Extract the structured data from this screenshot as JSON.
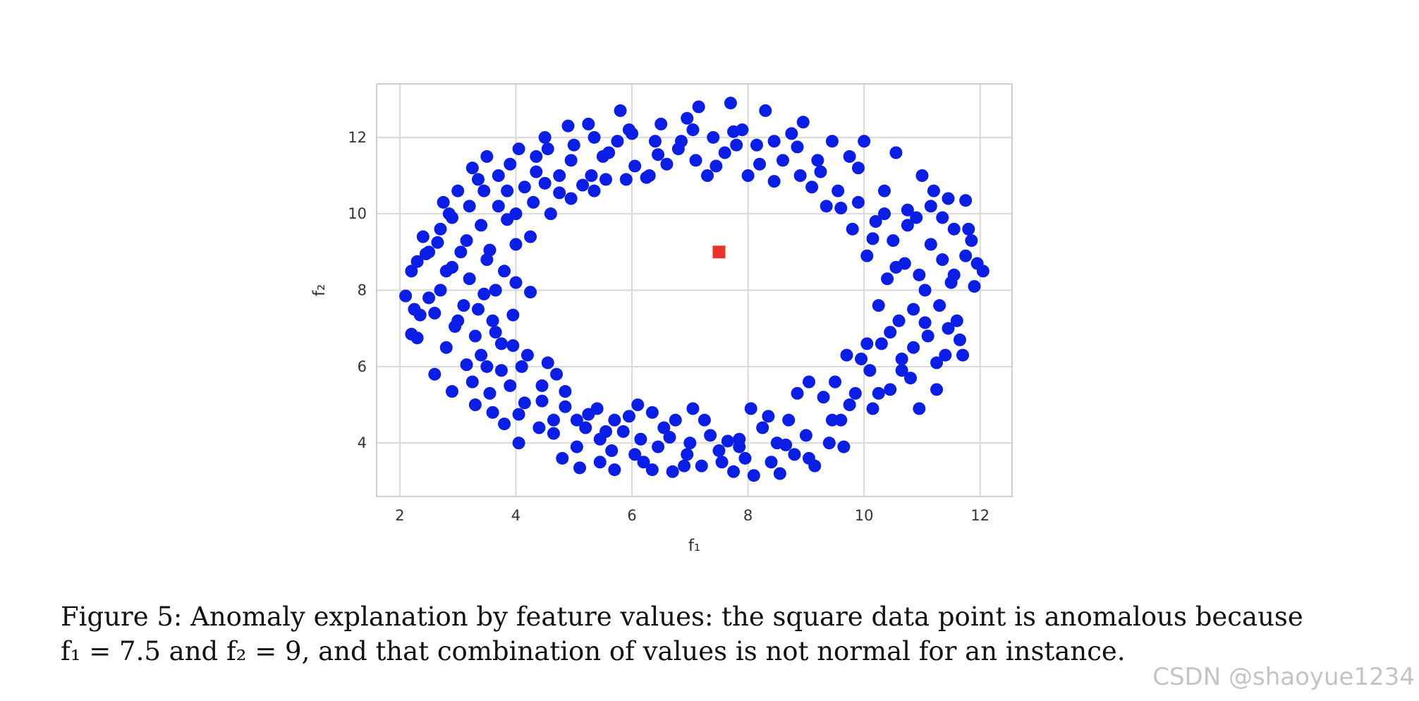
{
  "chart_data": {
    "type": "scatter",
    "title": "",
    "xlabel": "f₁",
    "ylabel": "f₂",
    "xlim": [
      1.6,
      12.55
    ],
    "ylim": [
      2.6,
      13.4
    ],
    "xticks": [
      2,
      4,
      6,
      8,
      10,
      12
    ],
    "yticks": [
      4,
      6,
      8,
      10,
      12
    ],
    "grid": true,
    "series": [
      {
        "marker": "circle",
        "color": "#0a1ee8",
        "points": [
          [
            2.1,
            7.85
          ],
          [
            2.2,
            8.5
          ],
          [
            2.3,
            8.75
          ],
          [
            2.25,
            7.5
          ],
          [
            2.35,
            7.35
          ],
          [
            2.2,
            6.85
          ],
          [
            2.3,
            6.75
          ],
          [
            2.4,
            9.4
          ],
          [
            2.5,
            9.0
          ],
          [
            2.5,
            7.8
          ],
          [
            2.6,
            7.4
          ],
          [
            2.6,
            5.8
          ],
          [
            2.7,
            8.0
          ],
          [
            2.7,
            9.6
          ],
          [
            2.75,
            10.3
          ],
          [
            2.8,
            8.5
          ],
          [
            2.8,
            6.5
          ],
          [
            2.9,
            8.6
          ],
          [
            2.9,
            9.9
          ],
          [
            2.9,
            5.35
          ],
          [
            3.0,
            7.2
          ],
          [
            3.0,
            10.6
          ],
          [
            3.05,
            9.0
          ],
          [
            3.1,
            7.6
          ],
          [
            3.15,
            9.3
          ],
          [
            3.2,
            8.3
          ],
          [
            3.2,
            10.2
          ],
          [
            3.25,
            11.2
          ],
          [
            3.3,
            6.8
          ],
          [
            3.3,
            5.0
          ],
          [
            3.35,
            7.5
          ],
          [
            3.4,
            6.3
          ],
          [
            3.4,
            9.7
          ],
          [
            3.45,
            10.6
          ],
          [
            3.5,
            11.5
          ],
          [
            3.5,
            8.8
          ],
          [
            3.5,
            6.0
          ],
          [
            3.55,
            5.3
          ],
          [
            3.6,
            7.2
          ],
          [
            3.6,
            4.8
          ],
          [
            3.65,
            8.0
          ],
          [
            3.7,
            10.2
          ],
          [
            3.7,
            11.0
          ],
          [
            3.75,
            6.6
          ],
          [
            3.8,
            4.5
          ],
          [
            3.8,
            8.5
          ],
          [
            3.85,
            10.6
          ],
          [
            3.9,
            11.3
          ],
          [
            3.9,
            5.5
          ],
          [
            3.95,
            7.35
          ],
          [
            4.0,
            8.2
          ],
          [
            4.0,
            9.2
          ],
          [
            4.0,
            10.0
          ],
          [
            4.05,
            11.7
          ],
          [
            4.05,
            4.0
          ],
          [
            4.1,
            6.0
          ],
          [
            4.15,
            5.05
          ],
          [
            4.2,
            6.3
          ],
          [
            4.25,
            9.4
          ],
          [
            4.3,
            10.3
          ],
          [
            4.35,
            11.5
          ],
          [
            4.4,
            4.4
          ],
          [
            4.45,
            5.5
          ],
          [
            4.5,
            12.0
          ],
          [
            4.5,
            10.8
          ],
          [
            4.55,
            6.1
          ],
          [
            4.6,
            10.0
          ],
          [
            4.65,
            4.6
          ],
          [
            4.7,
            5.8
          ],
          [
            4.75,
            11.0
          ],
          [
            4.8,
            3.6
          ],
          [
            4.85,
            5.35
          ],
          [
            4.9,
            12.3
          ],
          [
            4.95,
            10.4
          ],
          [
            5.0,
            11.8
          ],
          [
            5.05,
            4.6
          ],
          [
            5.1,
            3.35
          ],
          [
            5.2,
            4.4
          ],
          [
            5.25,
            12.35
          ],
          [
            5.3,
            11.0
          ],
          [
            5.35,
            10.6
          ],
          [
            5.4,
            4.9
          ],
          [
            5.45,
            3.5
          ],
          [
            5.5,
            11.5
          ],
          [
            5.55,
            4.3
          ],
          [
            5.6,
            11.6
          ],
          [
            5.7,
            4.6
          ],
          [
            5.7,
            3.3
          ],
          [
            5.8,
            12.7
          ],
          [
            5.9,
            10.9
          ],
          [
            5.95,
            4.7
          ],
          [
            6.0,
            12.1
          ],
          [
            6.05,
            11.25
          ],
          [
            6.1,
            5.0
          ],
          [
            6.15,
            4.1
          ],
          [
            6.2,
            3.5
          ],
          [
            6.3,
            11.0
          ],
          [
            6.35,
            4.8
          ],
          [
            6.4,
            11.9
          ],
          [
            6.45,
            3.9
          ],
          [
            6.5,
            12.35
          ],
          [
            6.55,
            4.4
          ],
          [
            6.6,
            11.3
          ],
          [
            6.7,
            3.25
          ],
          [
            6.75,
            4.6
          ],
          [
            6.8,
            11.7
          ],
          [
            6.9,
            3.4
          ],
          [
            6.95,
            12.5
          ],
          [
            7.0,
            4.0
          ],
          [
            7.05,
            4.9
          ],
          [
            7.1,
            11.4
          ],
          [
            7.15,
            12.8
          ],
          [
            7.2,
            3.4
          ],
          [
            7.3,
            11.0
          ],
          [
            7.35,
            4.2
          ],
          [
            7.4,
            12.0
          ],
          [
            7.5,
            3.8
          ],
          [
            7.6,
            11.6
          ],
          [
            7.65,
            4.05
          ],
          [
            7.7,
            12.9
          ],
          [
            7.75,
            3.25
          ],
          [
            7.8,
            11.8
          ],
          [
            7.85,
            4.1
          ],
          [
            7.9,
            12.2
          ],
          [
            7.95,
            3.6
          ],
          [
            8.0,
            11.0
          ],
          [
            8.05,
            4.9
          ],
          [
            8.1,
            3.15
          ],
          [
            8.2,
            11.3
          ],
          [
            8.25,
            4.4
          ],
          [
            8.3,
            12.7
          ],
          [
            8.4,
            3.5
          ],
          [
            8.45,
            11.9
          ],
          [
            8.5,
            4.0
          ],
          [
            8.55,
            3.2
          ],
          [
            8.6,
            11.4
          ],
          [
            8.7,
            4.6
          ],
          [
            8.75,
            12.1
          ],
          [
            8.8,
            3.7
          ],
          [
            8.85,
            5.3
          ],
          [
            8.9,
            11.0
          ],
          [
            8.95,
            12.4
          ],
          [
            9.0,
            4.2
          ],
          [
            9.05,
            5.6
          ],
          [
            9.1,
            10.7
          ],
          [
            9.15,
            3.4
          ],
          [
            9.2,
            11.4
          ],
          [
            9.3,
            5.2
          ],
          [
            9.35,
            10.2
          ],
          [
            9.4,
            4.0
          ],
          [
            9.45,
            11.9
          ],
          [
            9.5,
            5.6
          ],
          [
            9.55,
            10.6
          ],
          [
            9.6,
            4.6
          ],
          [
            9.65,
            3.9
          ],
          [
            9.7,
            6.3
          ],
          [
            9.75,
            11.5
          ],
          [
            9.8,
            9.6
          ],
          [
            9.85,
            5.3
          ],
          [
            9.9,
            10.3
          ],
          [
            9.95,
            6.2
          ],
          [
            10.0,
            11.9
          ],
          [
            10.05,
            8.9
          ],
          [
            10.1,
            5.9
          ],
          [
            10.15,
            4.9
          ],
          [
            10.2,
            9.8
          ],
          [
            10.25,
            7.6
          ],
          [
            10.3,
            6.6
          ],
          [
            10.35,
            10.6
          ],
          [
            10.4,
            8.3
          ],
          [
            10.45,
            5.4
          ],
          [
            10.5,
            9.3
          ],
          [
            10.55,
            11.6
          ],
          [
            10.6,
            7.2
          ],
          [
            10.65,
            6.2
          ],
          [
            10.7,
            8.7
          ],
          [
            10.75,
            10.1
          ],
          [
            10.8,
            5.7
          ],
          [
            10.85,
            7.5
          ],
          [
            10.9,
            9.9
          ],
          [
            10.95,
            4.9
          ],
          [
            11.0,
            11.0
          ],
          [
            11.05,
            8.0
          ],
          [
            11.1,
            6.8
          ],
          [
            11.15,
            9.2
          ],
          [
            11.2,
            10.6
          ],
          [
            11.25,
            5.4
          ],
          [
            11.3,
            7.6
          ],
          [
            11.35,
            8.8
          ],
          [
            11.4,
            6.3
          ],
          [
            11.45,
            10.4
          ],
          [
            11.5,
            8.2
          ],
          [
            11.55,
            9.6
          ],
          [
            11.6,
            7.2
          ],
          [
            11.7,
            6.3
          ],
          [
            11.75,
            8.9
          ],
          [
            11.8,
            9.6
          ],
          [
            11.85,
            9.3
          ],
          [
            11.9,
            8.1
          ],
          [
            11.95,
            8.7
          ],
          [
            12.05,
            8.5
          ],
          [
            2.45,
            8.95
          ],
          [
            2.65,
            9.25
          ],
          [
            2.85,
            10.0
          ],
          [
            2.95,
            7.05
          ],
          [
            3.15,
            6.05
          ],
          [
            3.25,
            5.6
          ],
          [
            3.35,
            10.9
          ],
          [
            3.45,
            7.9
          ],
          [
            3.55,
            9.05
          ],
          [
            3.65,
            6.9
          ],
          [
            3.75,
            5.9
          ],
          [
            3.85,
            9.85
          ],
          [
            3.95,
            6.55
          ],
          [
            4.05,
            4.75
          ],
          [
            4.15,
            10.7
          ],
          [
            4.25,
            7.95
          ],
          [
            4.35,
            11.1
          ],
          [
            4.45,
            5.1
          ],
          [
            4.55,
            11.7
          ],
          [
            4.65,
            4.25
          ],
          [
            4.75,
            10.55
          ],
          [
            4.85,
            4.95
          ],
          [
            4.95,
            11.4
          ],
          [
            5.05,
            3.9
          ],
          [
            5.15,
            10.75
          ],
          [
            5.25,
            4.75
          ],
          [
            5.35,
            12.0
          ],
          [
            5.45,
            4.1
          ],
          [
            5.55,
            10.9
          ],
          [
            5.65,
            3.8
          ],
          [
            5.75,
            11.9
          ],
          [
            5.85,
            4.3
          ],
          [
            5.95,
            12.2
          ],
          [
            6.05,
            3.7
          ],
          [
            6.25,
            10.95
          ],
          [
            6.35,
            3.3
          ],
          [
            6.45,
            11.55
          ],
          [
            6.65,
            4.15
          ],
          [
            6.85,
            11.9
          ],
          [
            6.95,
            3.7
          ],
          [
            7.05,
            12.2
          ],
          [
            7.25,
            4.6
          ],
          [
            7.45,
            11.25
          ],
          [
            7.55,
            3.5
          ],
          [
            7.75,
            12.15
          ],
          [
            7.85,
            3.9
          ],
          [
            8.15,
            11.8
          ],
          [
            8.35,
            4.7
          ],
          [
            8.45,
            10.85
          ],
          [
            8.65,
            3.95
          ],
          [
            8.85,
            11.75
          ],
          [
            9.05,
            3.6
          ],
          [
            9.25,
            11.1
          ],
          [
            9.45,
            4.6
          ],
          [
            9.6,
            10.15
          ],
          [
            9.75,
            5.0
          ],
          [
            9.9,
            11.2
          ],
          [
            10.05,
            6.6
          ],
          [
            10.15,
            9.35
          ],
          [
            10.25,
            5.3
          ],
          [
            10.35,
            10.0
          ],
          [
            10.45,
            6.9
          ],
          [
            10.55,
            8.6
          ],
          [
            10.65,
            5.9
          ],
          [
            10.75,
            9.7
          ],
          [
            10.85,
            6.5
          ],
          [
            10.95,
            8.4
          ],
          [
            11.05,
            7.15
          ],
          [
            11.15,
            10.2
          ],
          [
            11.25,
            6.1
          ],
          [
            11.35,
            9.9
          ],
          [
            11.45,
            7.0
          ],
          [
            11.55,
            8.4
          ],
          [
            11.65,
            6.7
          ],
          [
            11.75,
            10.35
          ]
        ]
      },
      {
        "marker": "square",
        "color": "#e8322a",
        "points": [
          [
            7.5,
            9.0
          ]
        ]
      }
    ]
  },
  "caption": {
    "line1": "Figure 5: Anomaly explanation by feature values: the square data point is anomalous because",
    "line2": "f₁ = 7.5 and f₂ = 9, and that combination of values is not normal for an instance."
  },
  "watermark": "CSDN @shaoyue1234"
}
